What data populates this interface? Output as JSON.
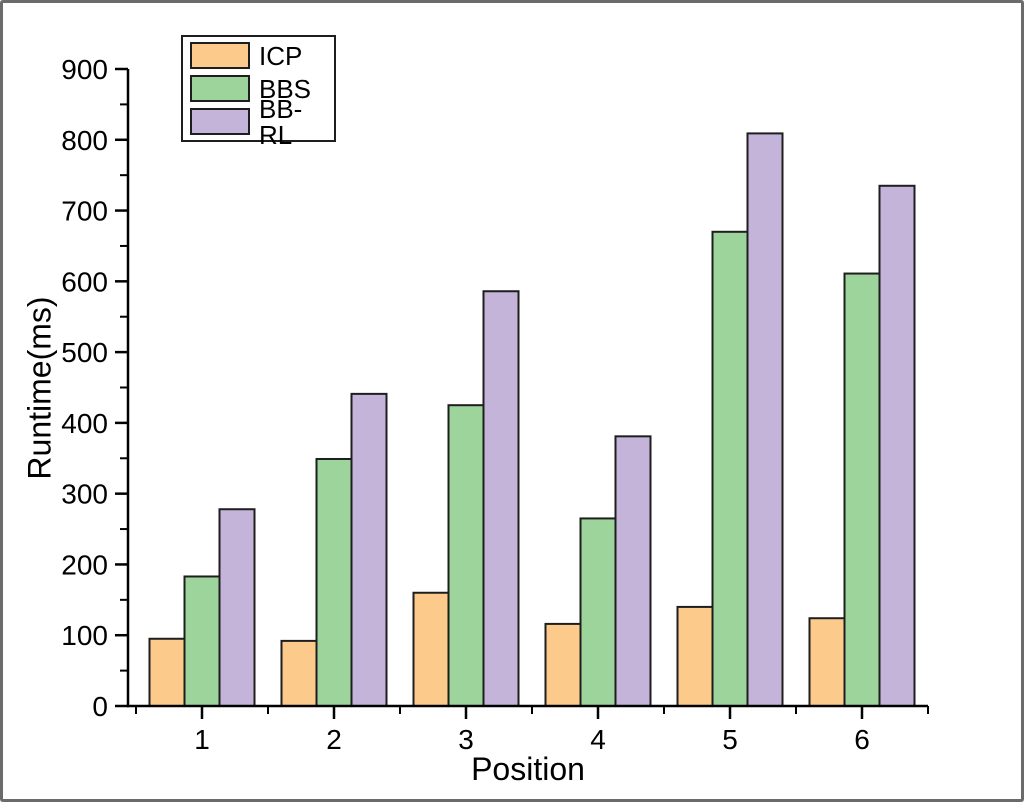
{
  "window": {
    "background": "#ffffff",
    "frame_border_color": "#6b6b6b"
  },
  "chart_data": {
    "type": "bar",
    "title": "",
    "xlabel": "Position",
    "ylabel": "Runtime(ms)",
    "categories": [
      "1",
      "2",
      "3",
      "4",
      "5",
      "6"
    ],
    "series": [
      {
        "name": "ICP",
        "color": "#FCCB8C",
        "values": [
          95,
          92,
          160,
          116,
          140,
          124
        ]
      },
      {
        "name": "BBS",
        "color": "#9CD49B",
        "values": [
          183,
          349,
          425,
          265,
          670,
          611
        ]
      },
      {
        "name": "BB-RL",
        "color": "#C5B4D9",
        "values": [
          278,
          441,
          586,
          381,
          809,
          735
        ]
      }
    ],
    "ylim": [
      0,
      900
    ],
    "yticks": [
      0,
      100,
      200,
      300,
      400,
      500,
      600,
      700,
      800,
      900
    ],
    "yminor_step": 50,
    "xminor_positions": [
      0.5,
      1.5,
      2.5,
      3.5,
      4.5,
      5.5,
      6.5
    ],
    "bar_border_color": "#1e1e1e",
    "axis_color": "#000000",
    "grid": false,
    "legend_position": "top-left"
  }
}
